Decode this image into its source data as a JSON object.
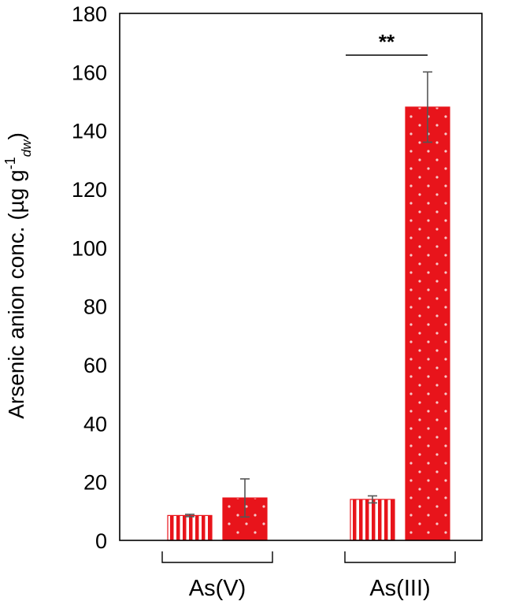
{
  "chart_data": {
    "type": "bar",
    "ylabel_main": "Arsenic anion conc. (µg g",
    "ylabel_sup": "-1",
    "ylabel_sub": "dw",
    "ylabel_close": ")",
    "ylim": [
      0,
      180
    ],
    "yticks": [
      0,
      20,
      40,
      60,
      80,
      100,
      120,
      140,
      160,
      180
    ],
    "grid": false,
    "categories": [
      "As(V)",
      "As(III)"
    ],
    "series": [
      {
        "pattern": "vertical-stripes",
        "color": "#e8141b",
        "values": [
          8.5,
          14
        ],
        "errors": [
          0.4,
          1.2
        ]
      },
      {
        "pattern": "dots",
        "color": "#e8141b",
        "values": [
          14.5,
          148
        ],
        "errors": [
          6.5,
          12
        ]
      }
    ],
    "annotations": [
      {
        "text": "**",
        "category_index": 1
      }
    ]
  }
}
